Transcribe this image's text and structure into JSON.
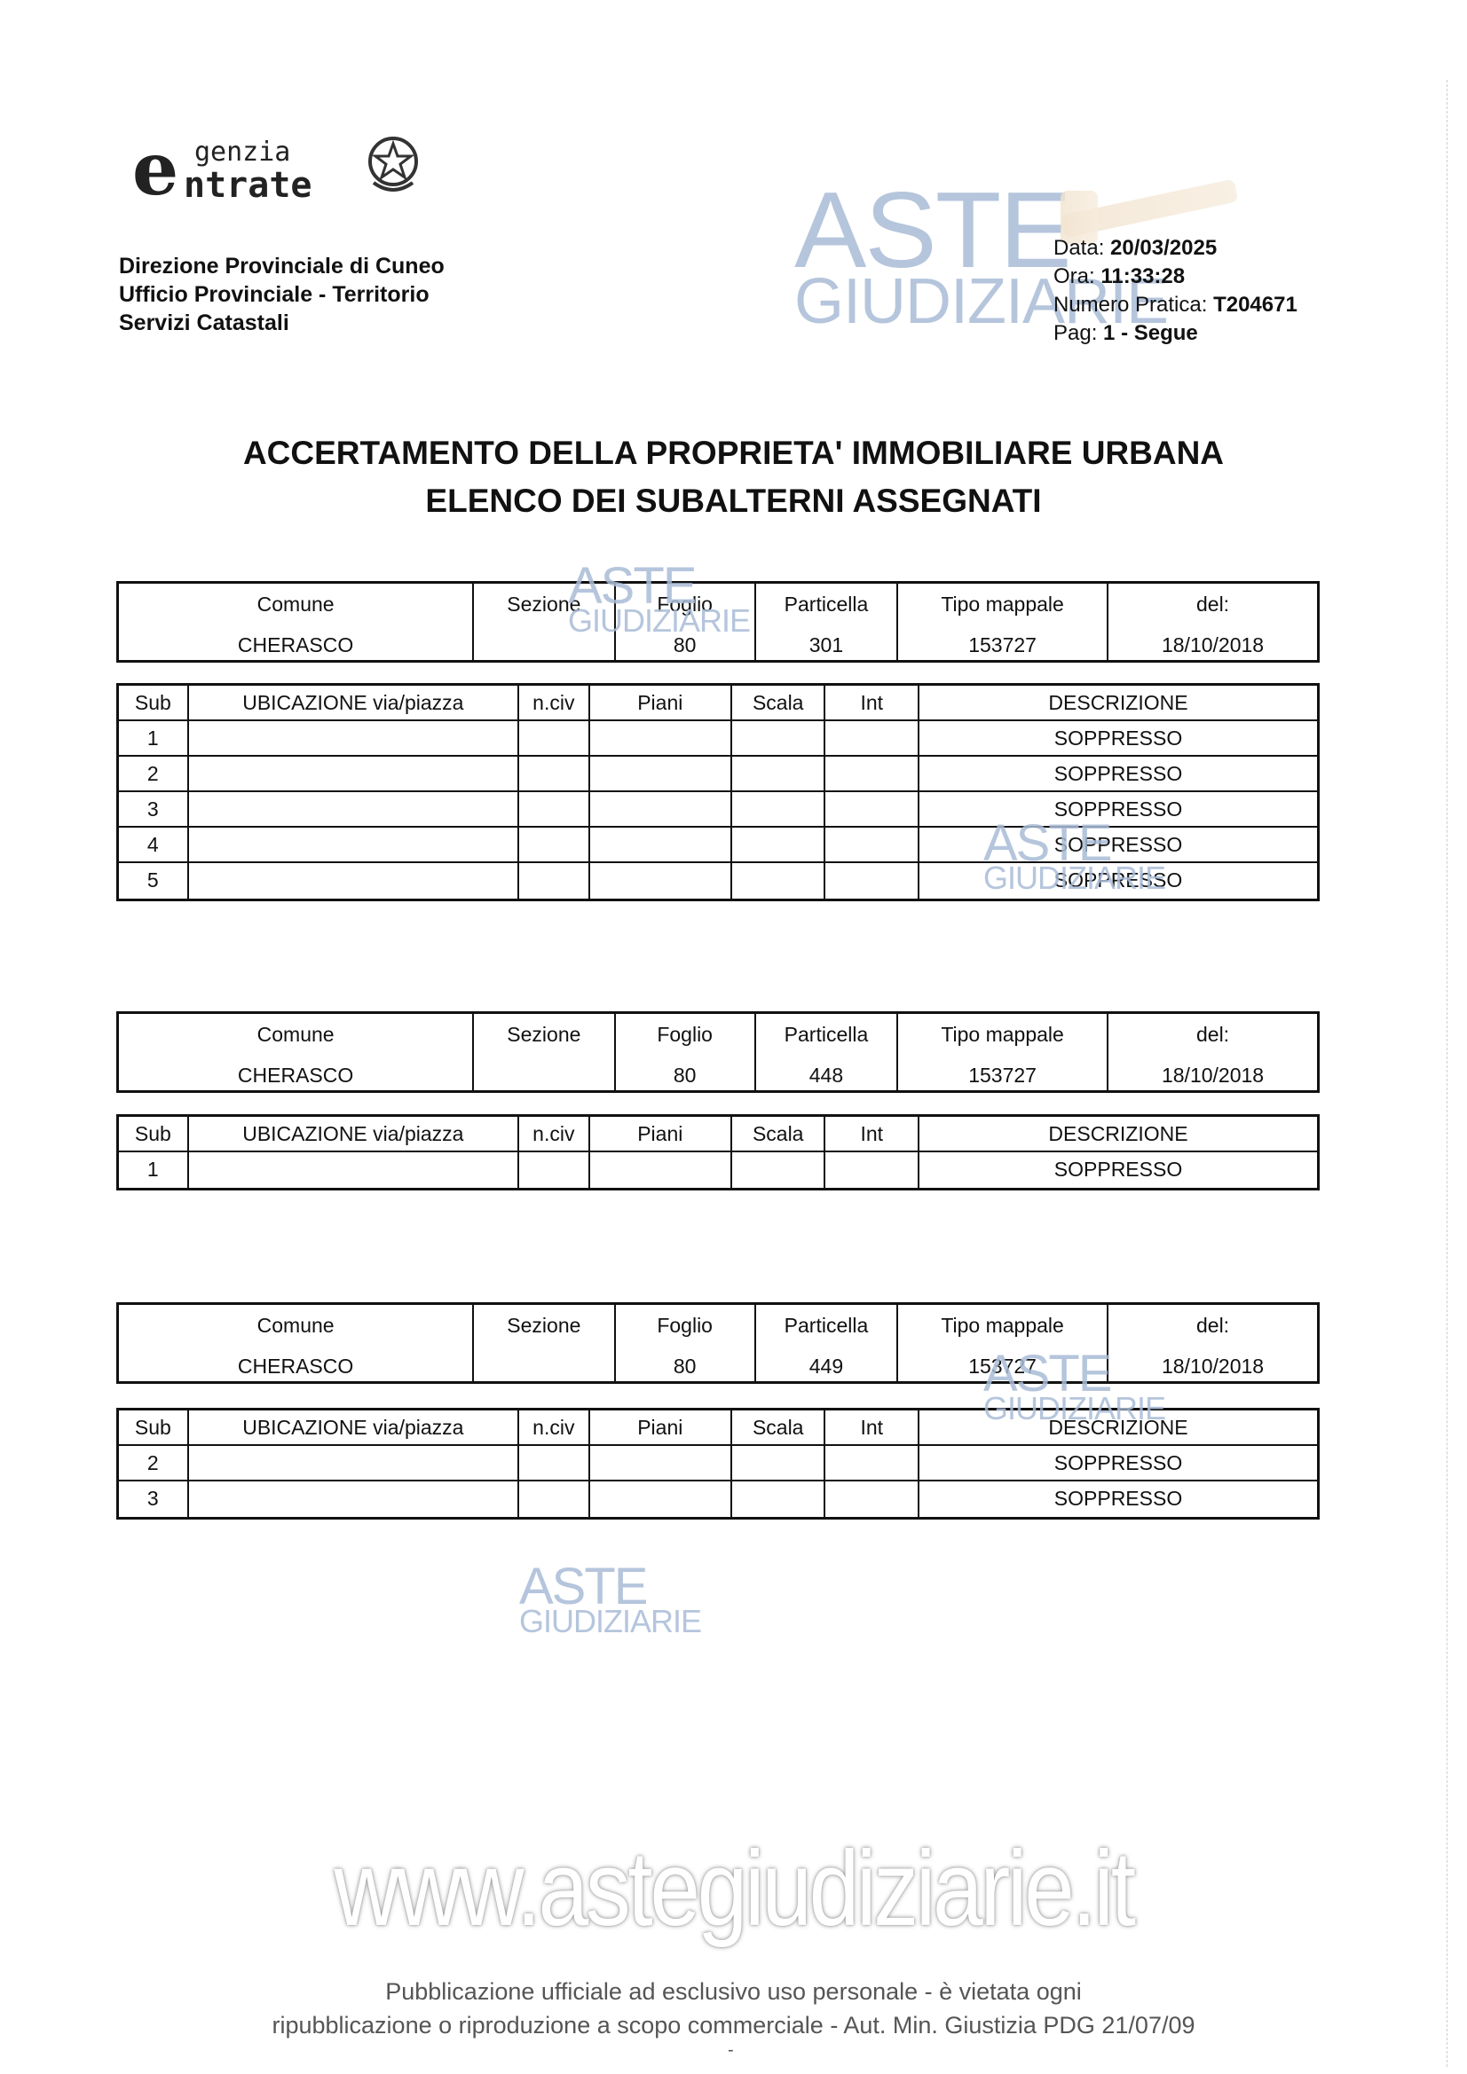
{
  "logo": {
    "text_top": "genzia",
    "text_bottom": "ntrate",
    "letter": "e",
    "name": "Agenzia Entrate"
  },
  "office": [
    "Direzione Provinciale di Cuneo",
    "Ufficio Provinciale - Territorio",
    "Servizi Catastali"
  ],
  "info": {
    "data_label": "Data:",
    "data_value": "20/03/2025",
    "ora_label": "Ora:",
    "ora_value": "11:33:28",
    "pratica_label": "Numero Pratica:",
    "pratica_value": "T204671",
    "pag_label": "Pag:",
    "pag_value": "1 - Segue"
  },
  "title": [
    "ACCERTAMENTO DELLA PROPRIETA' IMMOBILIARE URBANA",
    "ELENCO DEI SUBALTERNI ASSEGNATI"
  ],
  "header_labels": [
    "Comune",
    "Sezione",
    "Foglio",
    "Particella",
    "Tipo mappale",
    "del:"
  ],
  "body_labels": [
    "Sub",
    "UBICAZIONE via/piazza",
    "n.civ",
    "Piani",
    "Scala",
    "Int",
    "DESCRIZIONE"
  ],
  "blocks": [
    {
      "values": [
        "CHERASCO",
        "",
        "80",
        "301",
        "153727",
        "18/10/2018"
      ],
      "rows": [
        [
          "1",
          "",
          "",
          "",
          "",
          "",
          "SOPPRESSO"
        ],
        [
          "2",
          "",
          "",
          "",
          "",
          "",
          "SOPPRESSO"
        ],
        [
          "3",
          "",
          "",
          "",
          "",
          "",
          "SOPPRESSO"
        ],
        [
          "4",
          "",
          "",
          "",
          "",
          "",
          "SOPPRESSO"
        ],
        [
          "5",
          "",
          "",
          "",
          "",
          "",
          "SOPPRESSO"
        ]
      ]
    },
    {
      "values": [
        "CHERASCO",
        "",
        "80",
        "448",
        "153727",
        "18/10/2018"
      ],
      "rows": [
        [
          "1",
          "",
          "",
          "",
          "",
          "",
          "SOPPRESSO"
        ]
      ]
    },
    {
      "values": [
        "CHERASCO",
        "",
        "80",
        "449",
        "153727",
        "18/10/2018"
      ],
      "rows": [
        [
          "2",
          "",
          "",
          "",
          "",
          "",
          "SOPPRESSO"
        ],
        [
          "3",
          "",
          "",
          "",
          "",
          "",
          "SOPPRESSO"
        ]
      ]
    }
  ],
  "watermark": {
    "line1": "ASTE",
    "line2": "GIUDIZIARIE",
    "site": "www.astegiudiziarie.it"
  },
  "footer": [
    "Pubblicazione ufficiale ad esclusivo uso personale - è vietata ogni",
    "ripubblicazione o riproduzione a scopo commerciale - Aut. Min. Giustizia PDG 21/07/09",
    "-"
  ]
}
